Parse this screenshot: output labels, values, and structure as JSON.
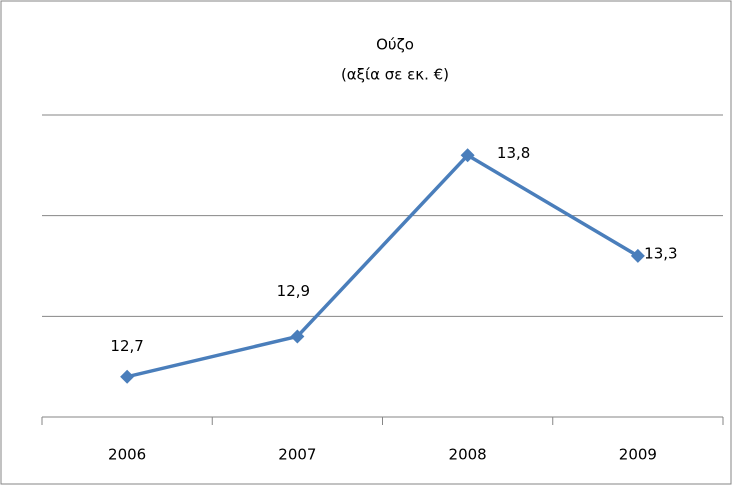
{
  "chart_data": {
    "type": "line",
    "title": "Ούζο",
    "subtitle": "(αξία σε εκ. €)",
    "categories": [
      "2006",
      "2007",
      "2008",
      "2009"
    ],
    "values": [
      12.7,
      12.9,
      13.8,
      13.3
    ],
    "value_labels": [
      "12,7",
      "12,9",
      "13,8",
      "13,3"
    ],
    "color": "#4a7ebb",
    "ylim": [
      12.5,
      14
    ],
    "yticks": [
      12.5,
      13,
      13.5,
      14
    ],
    "grid": true
  }
}
